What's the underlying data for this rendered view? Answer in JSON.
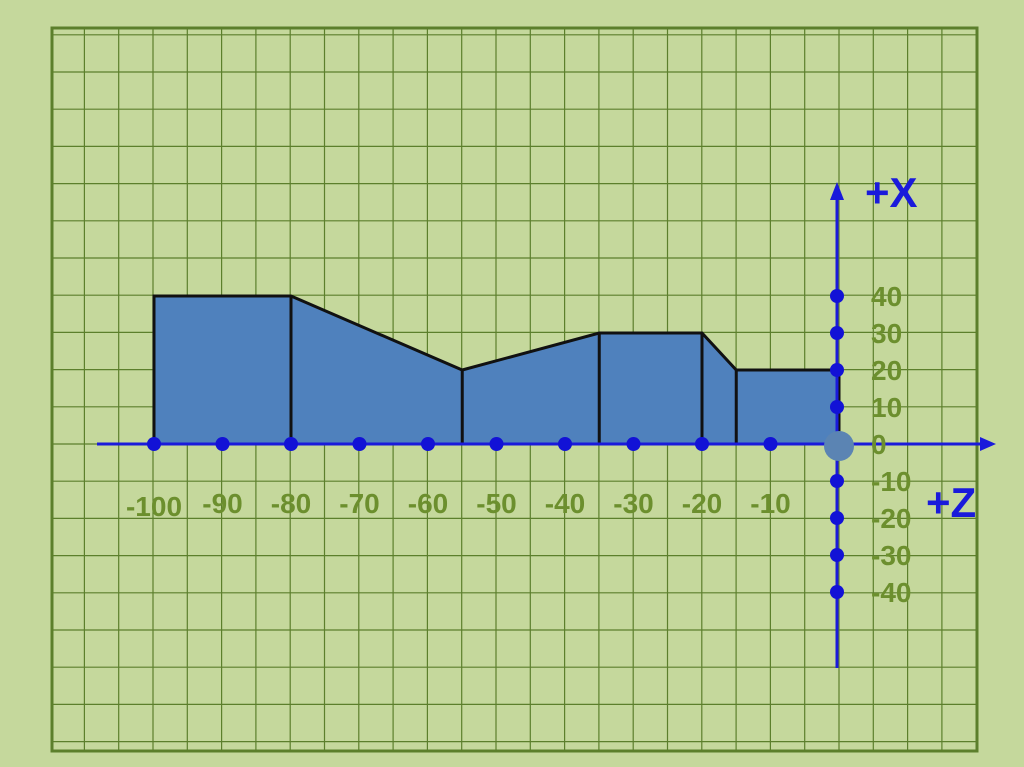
{
  "colors": {
    "background": "#c5d89c",
    "grid_line": "#5c7f2c",
    "axis": "#1a1adb",
    "tick_dot": "#1212d6",
    "origin_dot": "#5b84b3",
    "profile_fill": "#4f81bd",
    "profile_stroke": "#111111",
    "tick_label": "#6c8f2e",
    "axis_title": "#1a1adb"
  },
  "axes": {
    "x_axis_title": "+X",
    "z_axis_title": "+Z"
  },
  "z_ticks": [
    {
      "value": -100,
      "label": "-100"
    },
    {
      "value": -90,
      "label": "-90"
    },
    {
      "value": -80,
      "label": "-80"
    },
    {
      "value": -70,
      "label": "-70"
    },
    {
      "value": -60,
      "label": "-60"
    },
    {
      "value": -50,
      "label": "-50"
    },
    {
      "value": -40,
      "label": "-40"
    },
    {
      "value": -30,
      "label": "-30"
    },
    {
      "value": -20,
      "label": "-20"
    },
    {
      "value": -10,
      "label": "-10"
    }
  ],
  "x_ticks": [
    {
      "value": 40,
      "label": "40"
    },
    {
      "value": 30,
      "label": "30"
    },
    {
      "value": 20,
      "label": "20"
    },
    {
      "value": 10,
      "label": "10"
    },
    {
      "value": 0,
      "label": "0"
    },
    {
      "value": -10,
      "label": "-10"
    },
    {
      "value": -20,
      "label": "-20"
    },
    {
      "value": -30,
      "label": "-30"
    },
    {
      "value": -40,
      "label": "-40"
    }
  ],
  "profile": {
    "points": [
      {
        "z": -100,
        "x": 40
      },
      {
        "z": -80,
        "x": 40
      },
      {
        "z": -55,
        "x": 20
      },
      {
        "z": -35,
        "x": 30
      },
      {
        "z": -20,
        "x": 30
      },
      {
        "z": -15,
        "x": 20
      },
      {
        "z": 0,
        "x": 20
      }
    ],
    "section_lines_z": [
      -80,
      -55,
      -35,
      -20,
      -15
    ]
  }
}
